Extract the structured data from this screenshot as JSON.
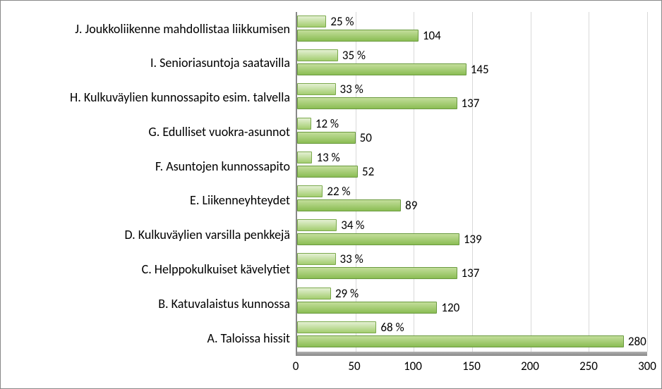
{
  "chart": {
    "type": "bar-horizontal-grouped",
    "background_color": "#ffffff",
    "border_color": "#888888",
    "grid_color": "#d9d9d9",
    "text_color": "#000000",
    "font_family": "Calibri, Arial, sans-serif",
    "label_fontsize": 18,
    "value_fontsize": 17,
    "tick_fontsize": 17,
    "x_axis": {
      "min": 0,
      "max": 300,
      "step": 50,
      "ticks": [
        "0",
        "50",
        "100",
        "150",
        "200",
        "250",
        "300"
      ]
    },
    "series": {
      "percent": {
        "bar_color_top": "#e4f0d3",
        "bar_color_bottom": "#a3cd6f",
        "border_color": "#7aa94b"
      },
      "count": {
        "bar_color_top": "#c3de9b",
        "bar_color_bottom": "#8bbd54",
        "border_color": "#6a9a3f"
      }
    },
    "rows": [
      {
        "label": "J. Joukkoliikenne mahdollistaa liikkumisen",
        "percent": 25,
        "percent_text": "25 %",
        "count": 104,
        "count_text": "104"
      },
      {
        "label": "I. Senioriasuntoja saatavilla",
        "percent": 35,
        "percent_text": "35 %",
        "count": 145,
        "count_text": "145"
      },
      {
        "label": "H. Kulkuväylien kunnossapito esim. talvella",
        "percent": 33,
        "percent_text": "33 %",
        "count": 137,
        "count_text": "137"
      },
      {
        "label": "G. Edulliset vuokra-asunnot",
        "percent": 12,
        "percent_text": "12 %",
        "count": 50,
        "count_text": "50"
      },
      {
        "label": "F. Asuntojen kunnossapito",
        "percent": 13,
        "percent_text": "13 %",
        "count": 52,
        "count_text": "52"
      },
      {
        "label": "E. Liikenneyhteydet",
        "percent": 22,
        "percent_text": "22 %",
        "count": 89,
        "count_text": "89"
      },
      {
        "label": "D. Kulkuväylien varsilla penkkejä",
        "percent": 34,
        "percent_text": "34 %",
        "count": 139,
        "count_text": "139"
      },
      {
        "label": "C. Helppokulkuiset kävelytiet",
        "percent": 33,
        "percent_text": "33 %",
        "count": 137,
        "count_text": "137"
      },
      {
        "label": "B. Katuvalaistus kunnossa",
        "percent": 29,
        "percent_text": "29 %",
        "count": 120,
        "count_text": "120"
      },
      {
        "label": "A. Taloissa hissit",
        "percent": 68,
        "percent_text": "68 %",
        "count": 280,
        "count_text": "280"
      }
    ]
  }
}
